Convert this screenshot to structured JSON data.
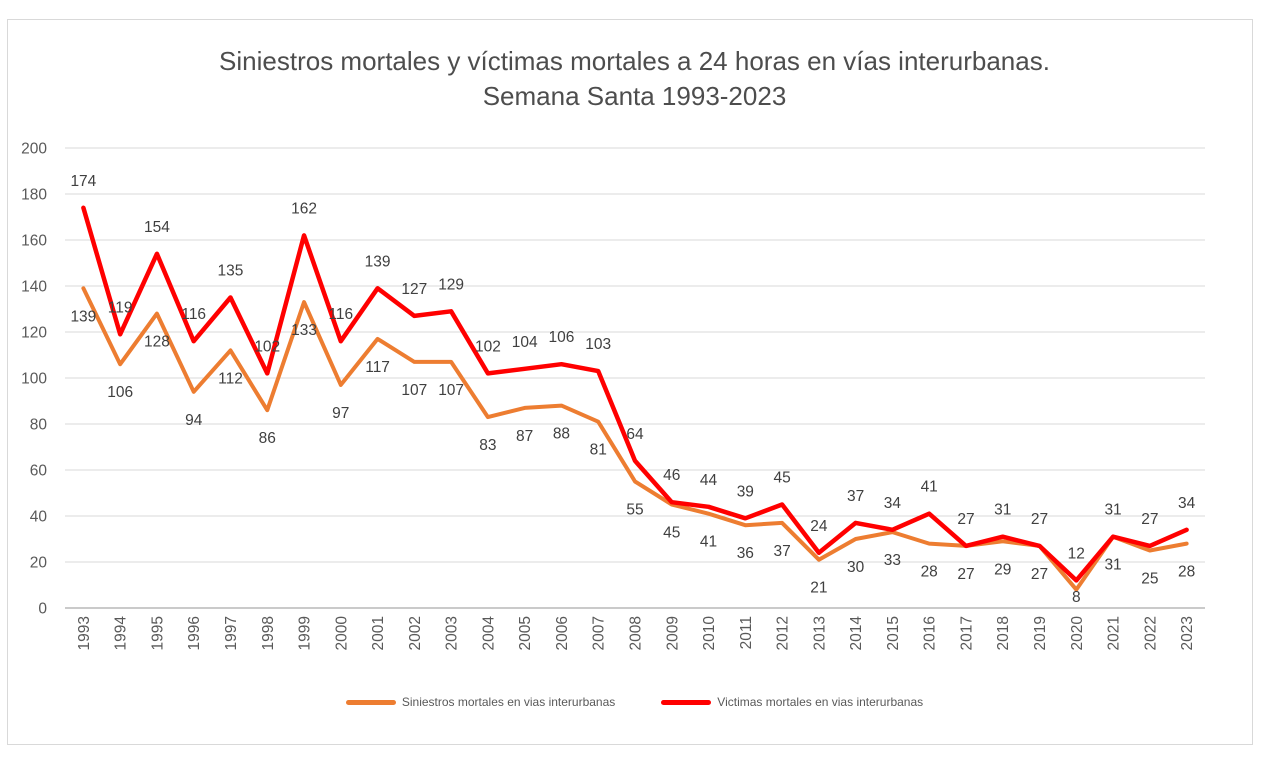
{
  "chart_data": {
    "type": "line",
    "title": "Siniestros mortales y víctimas mortales a 24 horas en vías interurbanas. Semana Santa 1993-2023",
    "title_line1": "Siniestros mortales y víctimas mortales a 24 horas en vías interurbanas.",
    "title_line2": "Semana Santa 1993-2023",
    "categories": [
      "1993",
      "1994",
      "1995",
      "1996",
      "1997",
      "1998",
      "1999",
      "2000",
      "2001",
      "2002",
      "2003",
      "2004",
      "2005",
      "2006",
      "2007",
      "2008",
      "2009",
      "2010",
      "2011",
      "2012",
      "2013",
      "2014",
      "2015",
      "2016",
      "2017",
      "2018",
      "2019",
      "2020",
      "2021",
      "2022",
      "2023"
    ],
    "series": [
      {
        "name": "Siniestros mortales en vias interurbanas",
        "color": "#ED7D31",
        "label_position": "below",
        "values": [
          139,
          106,
          128,
          94,
          112,
          86,
          133,
          97,
          117,
          107,
          107,
          83,
          87,
          88,
          81,
          55,
          45,
          41,
          36,
          37,
          21,
          30,
          33,
          28,
          27,
          29,
          27,
          8,
          31,
          25,
          28
        ]
      },
      {
        "name": "Victimas mortales en vias interurbanas",
        "color": "#FF0000",
        "label_position": "above",
        "values": [
          174,
          119,
          154,
          116,
          135,
          102,
          162,
          116,
          139,
          127,
          129,
          102,
          104,
          106,
          103,
          64,
          46,
          44,
          39,
          45,
          24,
          37,
          34,
          41,
          27,
          31,
          27,
          12,
          31,
          27,
          34
        ]
      }
    ],
    "ylim": [
      0,
      200
    ],
    "ytick_step": 20,
    "grid": true,
    "data_labels": true,
    "legend_position": "bottom",
    "colors": {
      "gridline": "#D9D9D9",
      "axis_line": "#ABABAB",
      "tick_text": "#595959",
      "data_label_text": "#404040",
      "title_text": "#4d4d4d",
      "frame_border": "#d9d9d9"
    }
  }
}
